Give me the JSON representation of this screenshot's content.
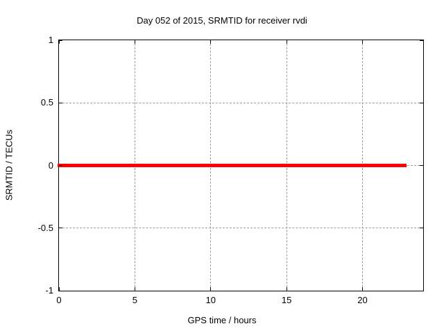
{
  "chart_data": {
    "type": "line",
    "title": "Day 052 of 2015, SRMTID for receiver rvdi",
    "xlabel": "GPS time / hours",
    "ylabel": "SRMTID / TECUs",
    "xlim": [
      0,
      24
    ],
    "ylim": [
      -1,
      1
    ],
    "xticks": [
      0,
      5,
      10,
      15,
      20
    ],
    "yticks": [
      -1,
      -0.5,
      0,
      0.5,
      1
    ],
    "xtick_labels": [
      "0",
      "5",
      "10",
      "15",
      "20"
    ],
    "ytick_labels": [
      "-1",
      "-0.5",
      "0",
      "0.5",
      "1"
    ],
    "grid": "dashed",
    "grid_color": "#9a9a9a",
    "border_color": "#000000",
    "background_color": "#ffffff",
    "legend": "none",
    "series": [
      {
        "name": "SRMTID",
        "color": "#ff0000",
        "line_width": 5,
        "x": [
          0,
          22.8
        ],
        "y": [
          0,
          0
        ]
      }
    ]
  }
}
